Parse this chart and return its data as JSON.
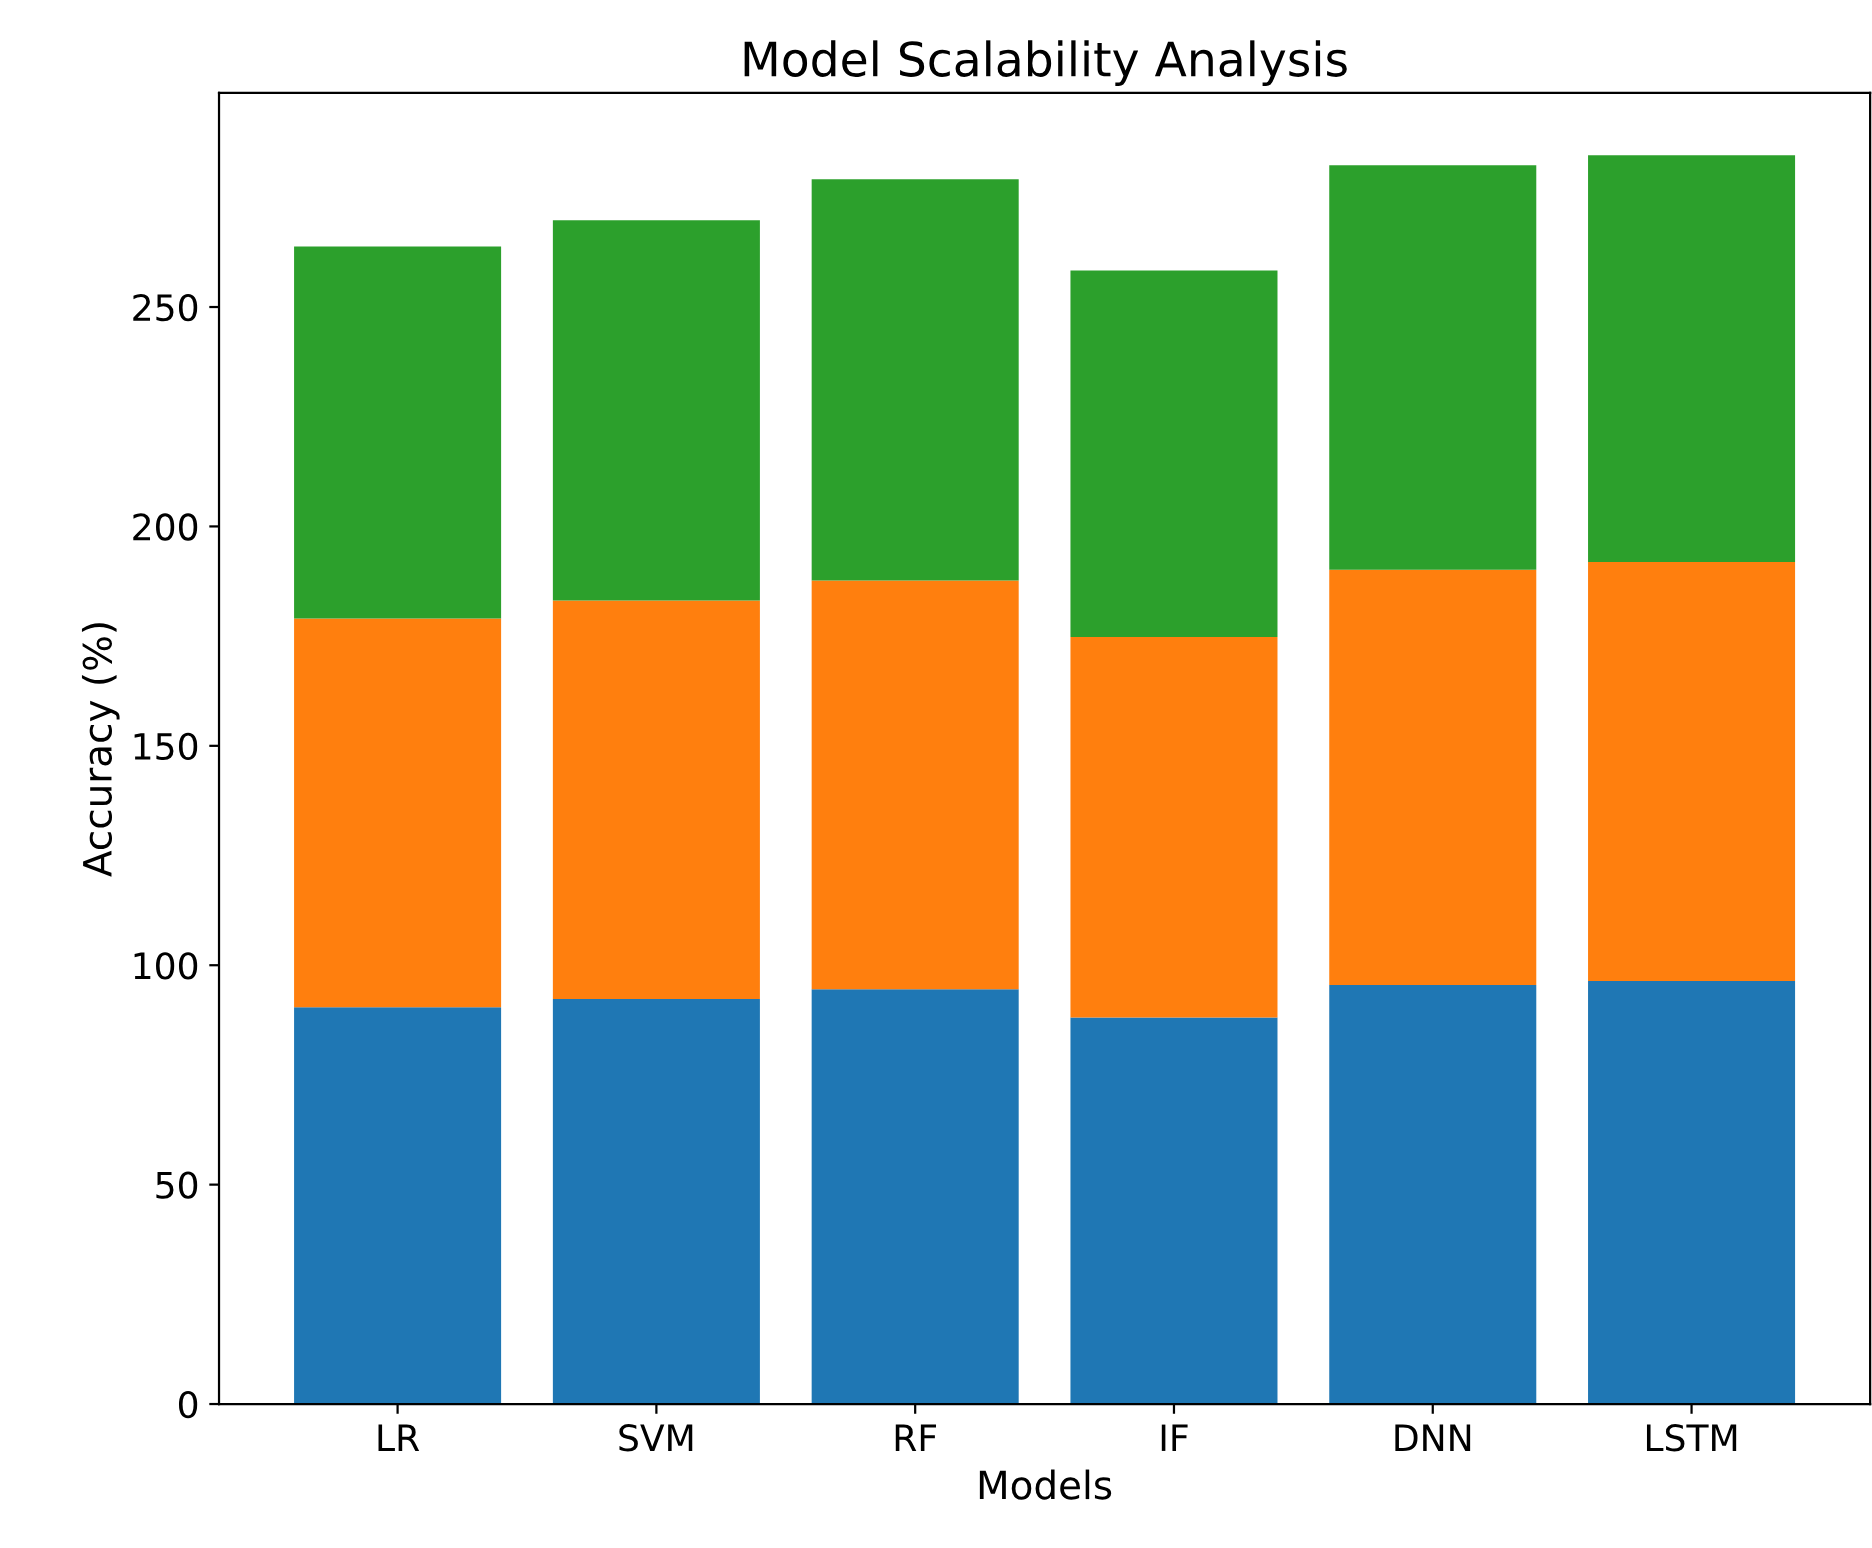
{
  "chart_data": {
    "type": "bar",
    "title": "Model Scalability Analysis",
    "xlabel": "Models",
    "ylabel": "Accuracy (%)",
    "stacked": true,
    "categories": [
      "LR",
      "SVM",
      "RF",
      "IF",
      "DNN",
      "LSTM"
    ],
    "series": [
      {
        "color": "#1f77b4",
        "values": [
          90.4,
          92.3,
          94.5,
          88.1,
          95.5,
          96.4
        ]
      },
      {
        "color": "#ff7f0e",
        "values": [
          88.6,
          90.8,
          93.2,
          86.7,
          94.6,
          95.5
        ]
      },
      {
        "color": "#2ca02c",
        "values": [
          84.8,
          86.7,
          91.4,
          83.5,
          92.2,
          92.7
        ]
      }
    ],
    "ylim": [
      0,
      298.8
    ],
    "yticks": [
      0,
      50,
      100,
      150,
      200,
      250
    ],
    "grid": false,
    "legend": false
  }
}
